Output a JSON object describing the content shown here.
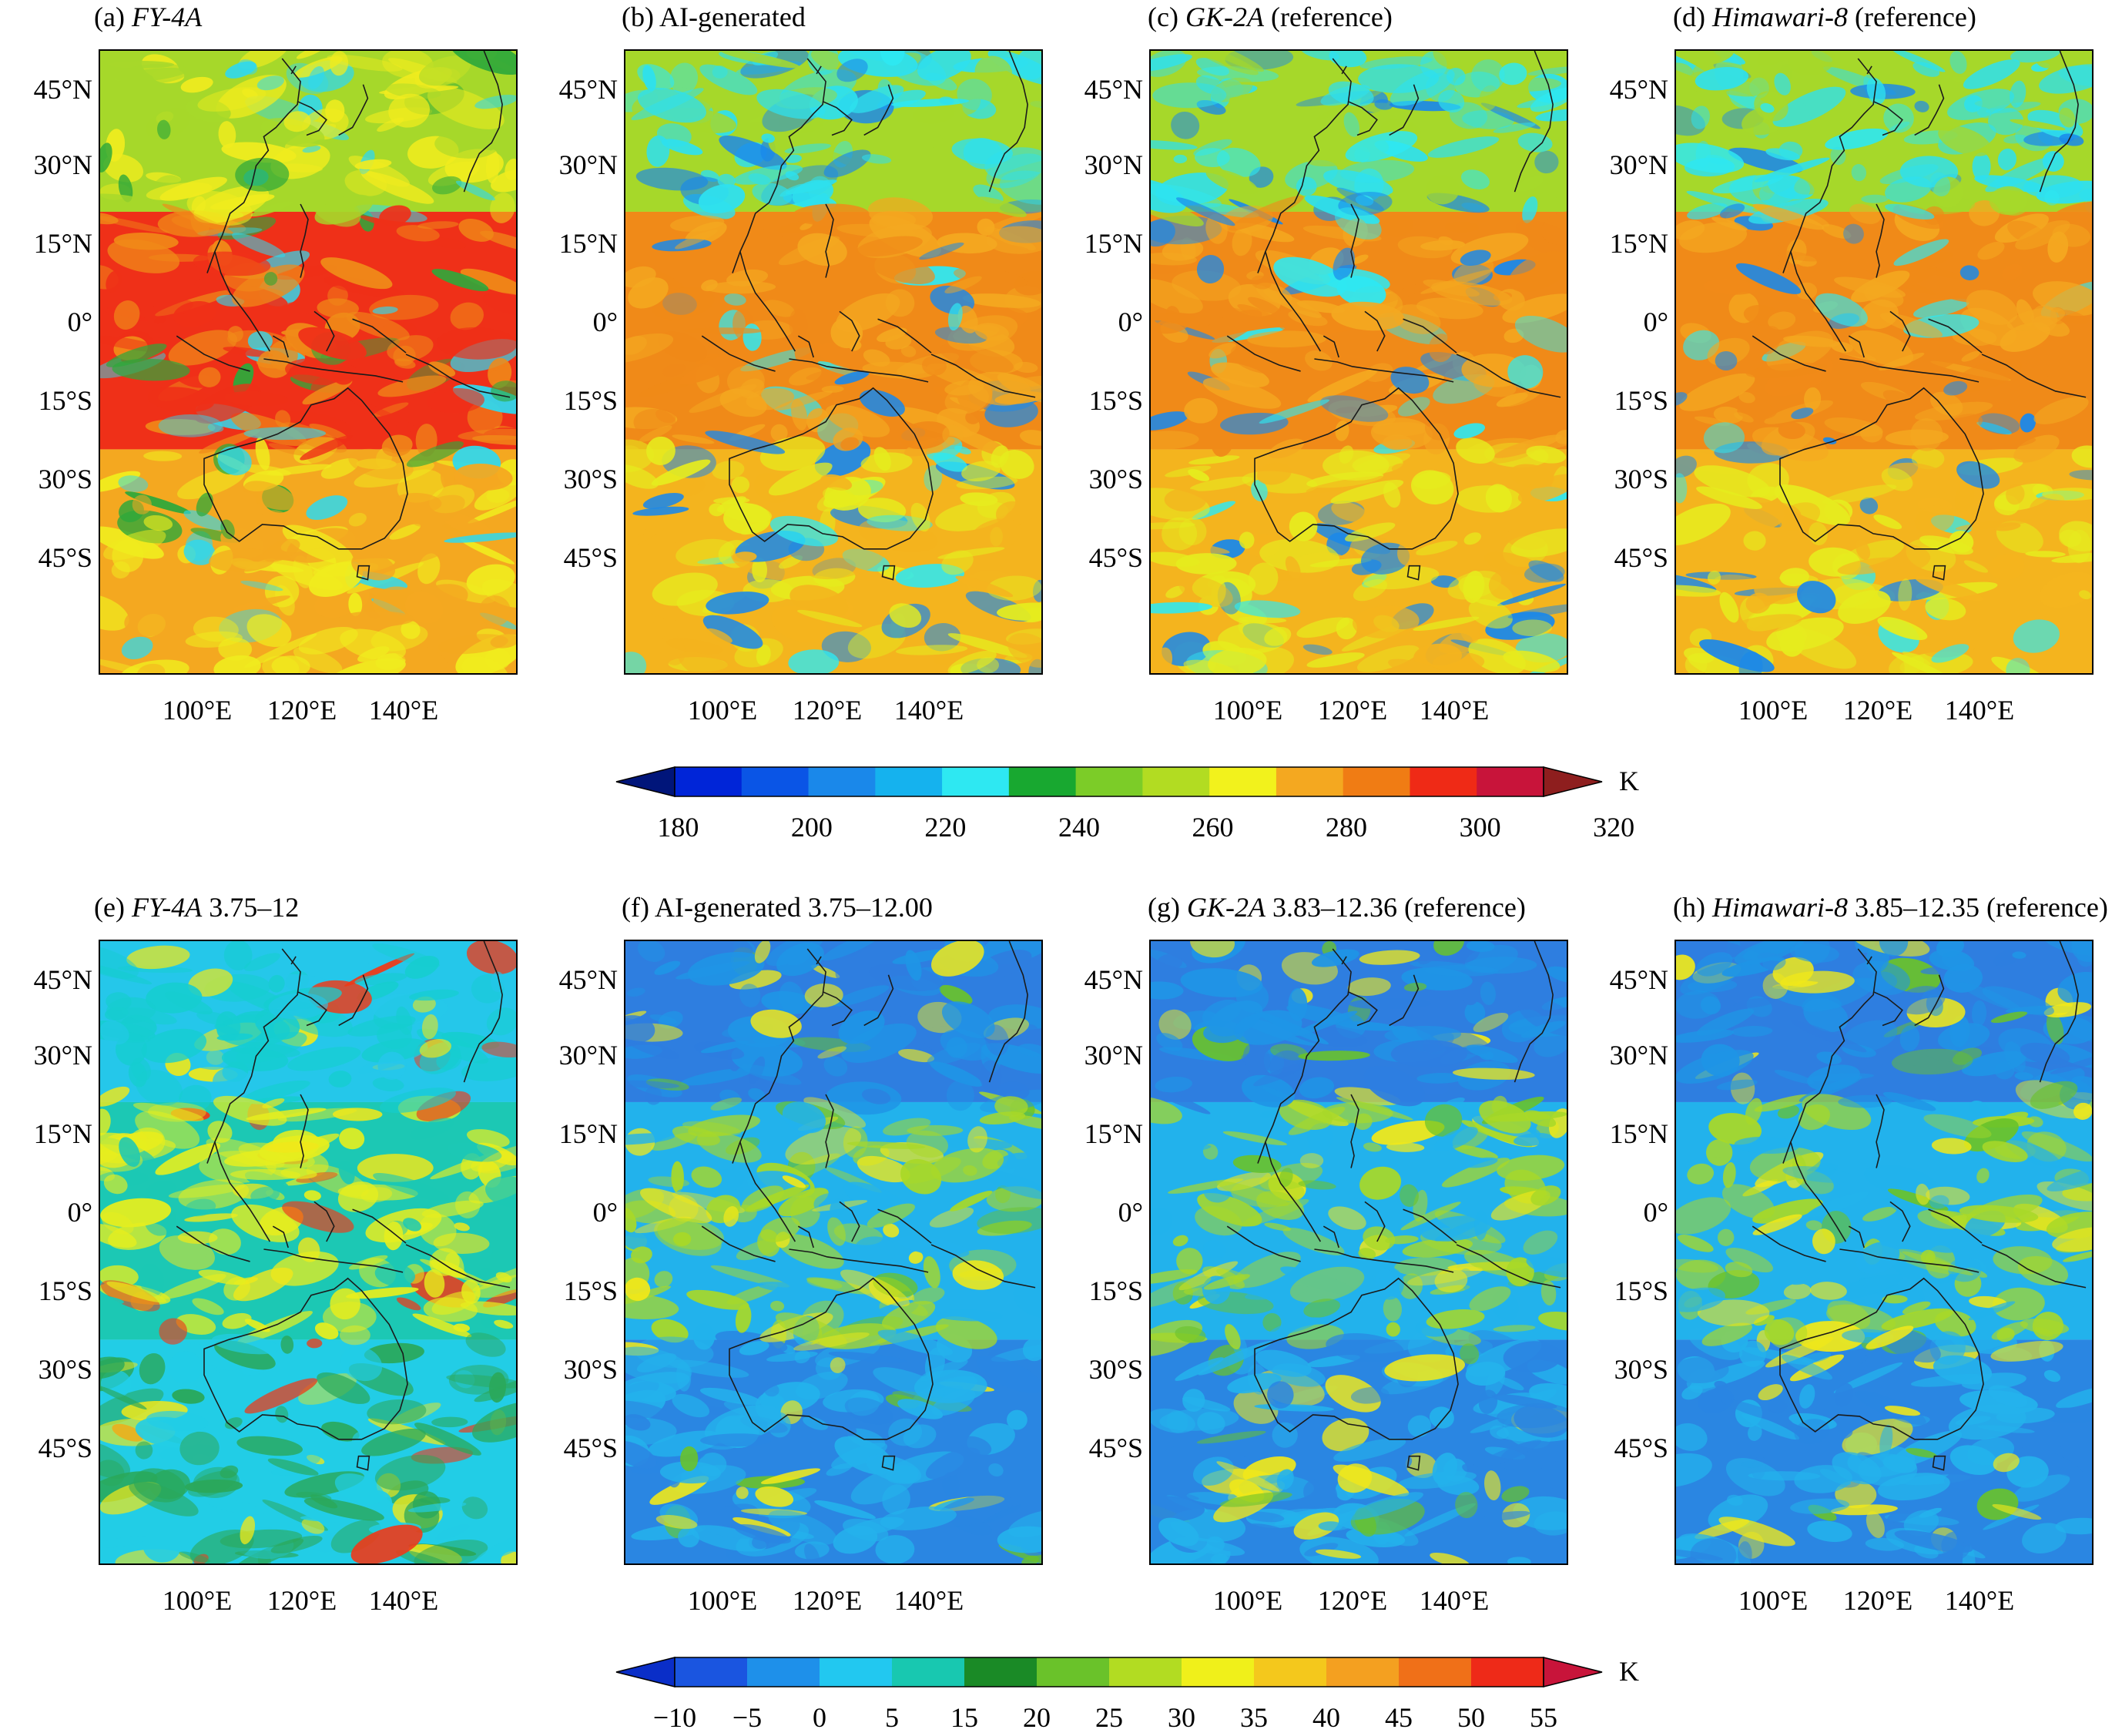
{
  "row1": {
    "panels": [
      {
        "prefix": "(a) ",
        "italic": "FY-4A",
        "suffix": "",
        "scheme": "bt_fy"
      },
      {
        "prefix": "(b) AI-generated",
        "italic": "",
        "suffix": "",
        "scheme": "bt_ref"
      },
      {
        "prefix": "(c) ",
        "italic": "GK-2A",
        "suffix": " (reference)",
        "scheme": "bt_ref"
      },
      {
        "prefix": "(d) ",
        "italic": "Himawari-8",
        "suffix": " (reference)",
        "scheme": "bt_ref"
      }
    ],
    "colorbar": {
      "unit": "K",
      "labels": [
        "180",
        "200",
        "220",
        "240",
        "260",
        "280",
        "300",
        "320"
      ],
      "colors": [
        "#00157a",
        "#0025d8",
        "#0a55e6",
        "#1a88ea",
        "#15b2ee",
        "#2ee8f2",
        "#18a830",
        "#7ccc28",
        "#b2dc22",
        "#f2f21c",
        "#f4a820",
        "#f07c14",
        "#ef2a16",
        "#c8143a",
        "#8e1e1e"
      ]
    }
  },
  "row2": {
    "panels": [
      {
        "prefix": "(e) ",
        "italic": "FY-4A",
        "suffix": " 3.75–12",
        "scheme": "bd_fy"
      },
      {
        "prefix": "(f) AI-generated 3.75–12.00",
        "italic": "",
        "suffix": "",
        "scheme": "bd_ref"
      },
      {
        "prefix": "(g) ",
        "italic": "GK-2A",
        "suffix": " 3.83–12.36 (reference)",
        "scheme": "bd_ref"
      },
      {
        "prefix": "(h) ",
        "italic": "Himawari-8",
        "suffix": " 3.85–12.35 (reference)",
        "scheme": "bd_ref"
      }
    ],
    "colorbar": {
      "unit": "K",
      "labels": [
        "−10",
        "−5",
        "0",
        "5",
        "15",
        "20",
        "25",
        "30",
        "35",
        "40",
        "45",
        "50",
        "55"
      ],
      "colors": [
        "#0a2ec8",
        "#1a55e0",
        "#1e90ea",
        "#22c8f0",
        "#18c8b0",
        "#1a8a26",
        "#6ac22a",
        "#b2dc22",
        "#f0f01a",
        "#f4c81c",
        "#f4a020",
        "#f07018",
        "#ee2a18",
        "#c8143a"
      ]
    }
  },
  "axes": {
    "lat_labels": [
      "45°N",
      "30°N",
      "15°N",
      "0°",
      "15°S",
      "30°S",
      "45°S"
    ],
    "lon_labels": [
      "100°E",
      "120°E",
      "140°E"
    ]
  },
  "map_colors": {
    "bt_fy": {
      "north": "#a6d82a",
      "north_alt": "#f0ec1e",
      "tropic": "#ef3018",
      "tropic_alt": "#f08a18",
      "south": "#f4a820",
      "south_alt": "#f0ec1e",
      "cloud": "#2fd8ee",
      "cloud_alt": "#2ea83a"
    },
    "bt_ref": {
      "north": "#a6d82a",
      "north_alt": "#2ee0ee",
      "tropic": "#f08a18",
      "tropic_alt": "#f4a820",
      "south": "#f4b41e",
      "south_alt": "#e6ec1e",
      "cloud": "#1a88ea",
      "cloud_alt": "#2ee8f2"
    },
    "bd_fy": {
      "north": "#25c7ea",
      "north_alt": "#16cdd0",
      "tropic": "#1cc8b4",
      "tropic_alt": "#e6ee1e",
      "south": "#22cde6",
      "south_alt": "#2aa85a",
      "cloud": "#f0e81a",
      "cloud_alt": "#ee3a18"
    },
    "bd_ref": {
      "north": "#2e7ee0",
      "north_alt": "#1f95e6",
      "tropic": "#22b2ec",
      "tropic_alt": "#a8d828",
      "south": "#2a86e2",
      "south_alt": "#24b2ec",
      "cloud": "#f0e81a",
      "cloud_alt": "#6ac22a"
    }
  }
}
